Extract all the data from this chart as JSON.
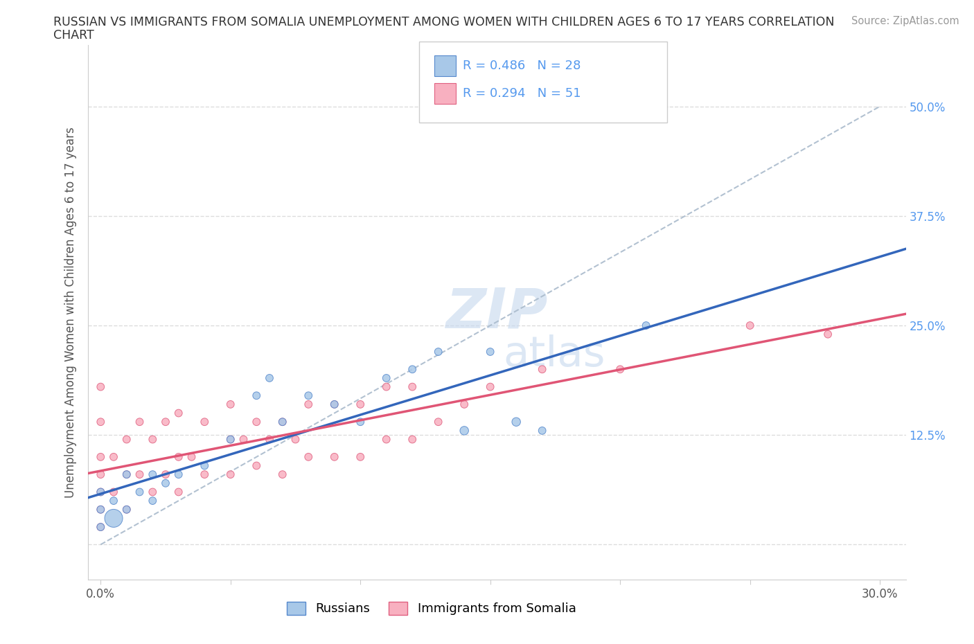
{
  "title_line1": "RUSSIAN VS IMMIGRANTS FROM SOMALIA UNEMPLOYMENT AMONG WOMEN WITH CHILDREN AGES 6 TO 17 YEARS CORRELATION",
  "title_line2": "CHART",
  "source": "Source: ZipAtlas.com",
  "ylabel": "Unemployment Among Women with Children Ages 6 to 17 years",
  "russian_R": 0.486,
  "russian_N": 28,
  "somalia_R": 0.294,
  "somalia_N": 51,
  "russian_color": "#a8c8e8",
  "somalia_color": "#f8b0c0",
  "russian_edge_color": "#5588cc",
  "somalia_edge_color": "#e06080",
  "russian_line_color": "#3366bb",
  "somalia_line_color": "#e05575",
  "dash_line_color": "#aabbcc",
  "watermark_color": "#c5d8ee",
  "legend_russian_label": "Russians",
  "legend_somalia_label": "Immigrants from Somalia",
  "background_color": "#ffffff",
  "grid_color": "#dddddd",
  "tick_label_color": "#5599ee",
  "axis_label_color": "#555555",
  "russian_x": [
    0.0,
    0.0,
    0.0,
    0.005,
    0.005,
    0.01,
    0.01,
    0.015,
    0.02,
    0.02,
    0.025,
    0.03,
    0.04,
    0.05,
    0.06,
    0.065,
    0.07,
    0.08,
    0.09,
    0.1,
    0.11,
    0.12,
    0.13,
    0.14,
    0.15,
    0.16,
    0.17,
    0.21
  ],
  "russian_y": [
    0.02,
    0.04,
    0.06,
    0.03,
    0.05,
    0.04,
    0.08,
    0.06,
    0.05,
    0.08,
    0.07,
    0.08,
    0.09,
    0.12,
    0.17,
    0.19,
    0.14,
    0.17,
    0.16,
    0.14,
    0.19,
    0.2,
    0.22,
    0.13,
    0.22,
    0.14,
    0.13,
    0.25
  ],
  "russian_sizes": [
    60,
    60,
    60,
    350,
    60,
    60,
    60,
    60,
    60,
    60,
    60,
    60,
    60,
    60,
    60,
    60,
    60,
    60,
    60,
    60,
    60,
    60,
    60,
    80,
    60,
    80,
    60,
    60
  ],
  "somalia_x": [
    0.0,
    0.0,
    0.0,
    0.0,
    0.0,
    0.0,
    0.0,
    0.005,
    0.005,
    0.01,
    0.01,
    0.01,
    0.015,
    0.015,
    0.02,
    0.02,
    0.025,
    0.025,
    0.03,
    0.03,
    0.03,
    0.035,
    0.04,
    0.04,
    0.05,
    0.05,
    0.05,
    0.055,
    0.06,
    0.06,
    0.065,
    0.07,
    0.07,
    0.075,
    0.08,
    0.08,
    0.09,
    0.09,
    0.1,
    0.1,
    0.11,
    0.11,
    0.12,
    0.12,
    0.13,
    0.14,
    0.15,
    0.17,
    0.2,
    0.25,
    0.28
  ],
  "somalia_y": [
    0.02,
    0.04,
    0.06,
    0.08,
    0.1,
    0.14,
    0.18,
    0.06,
    0.1,
    0.04,
    0.08,
    0.12,
    0.08,
    0.14,
    0.06,
    0.12,
    0.08,
    0.14,
    0.06,
    0.1,
    0.15,
    0.1,
    0.08,
    0.14,
    0.08,
    0.12,
    0.16,
    0.12,
    0.09,
    0.14,
    0.12,
    0.08,
    0.14,
    0.12,
    0.1,
    0.16,
    0.1,
    0.16,
    0.1,
    0.16,
    0.12,
    0.18,
    0.12,
    0.18,
    0.14,
    0.16,
    0.18,
    0.2,
    0.2,
    0.25,
    0.24
  ],
  "somalia_sizes": [
    60,
    60,
    60,
    60,
    60,
    60,
    60,
    60,
    60,
    60,
    60,
    60,
    60,
    60,
    60,
    60,
    60,
    60,
    60,
    60,
    60,
    60,
    60,
    60,
    60,
    60,
    60,
    60,
    60,
    60,
    60,
    60,
    60,
    60,
    60,
    60,
    60,
    60,
    60,
    60,
    60,
    60,
    60,
    60,
    60,
    60,
    60,
    60,
    60,
    60,
    60
  ],
  "xlim": [
    -0.005,
    0.31
  ],
  "ylim": [
    -0.04,
    0.57
  ],
  "xticks": [
    0.0,
    0.05,
    0.1,
    0.15,
    0.2,
    0.25,
    0.3
  ],
  "xticklabels": [
    "0.0%",
    "",
    "",
    "",
    "",
    "",
    "30.0%"
  ],
  "yticks": [
    0.0,
    0.125,
    0.25,
    0.375,
    0.5
  ],
  "yticklabels_right": [
    "",
    "12.5%",
    "25.0%",
    "37.5%",
    "50.0%"
  ]
}
